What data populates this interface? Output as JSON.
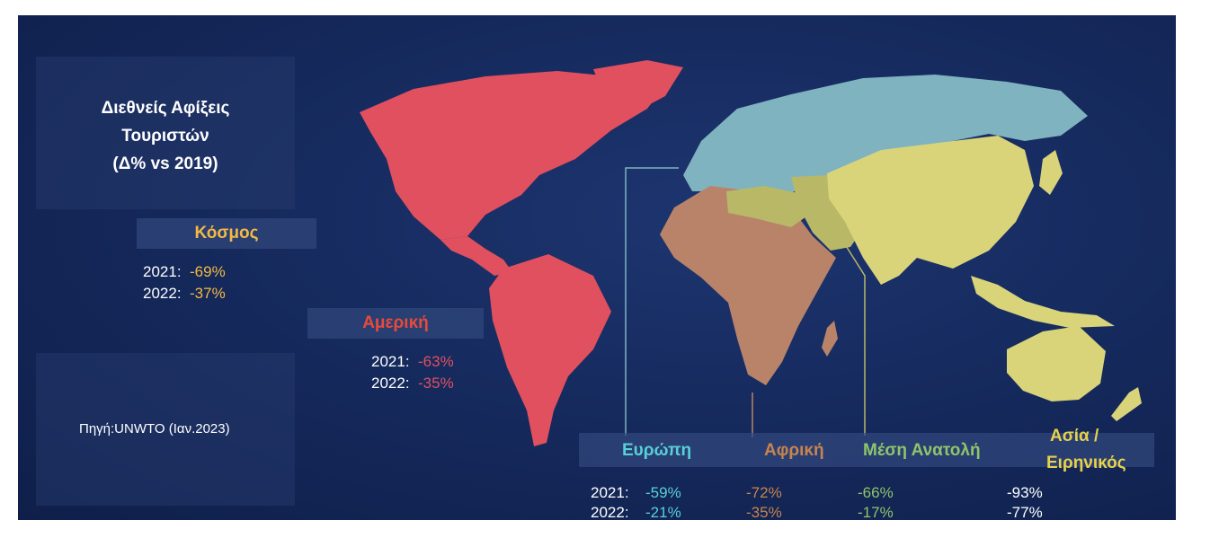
{
  "title_lines": [
    "Διεθνείς Αφίξεις",
    "Τουριστών",
    "(Δ% vs 2019)"
  ],
  "source": "Πηγή:UNWTO (Ιαν.2023)",
  "year_labels": [
    "2021:",
    "2022:"
  ],
  "colors": {
    "world": "#f4b942",
    "americas": "#e0505f",
    "europe": "#7fb3c0",
    "africa": "#b9836a",
    "middle_east": "#b8b867",
    "asia_pacific": "#d9d47a",
    "europe_text": "#58d0d8",
    "africa_text": "#c8844f",
    "middle_east_text": "#8fc46a",
    "asia_text": "#e7d24a"
  },
  "regions": {
    "world": {
      "name": "Κόσμος",
      "v2021": "-69%",
      "v2022": "-37%"
    },
    "americas": {
      "name": "Αμερική",
      "v2021": "-63%",
      "v2022": "-35%"
    },
    "europe": {
      "name": "Ευρώπη",
      "v2021": "-59%",
      "v2022": "-21%"
    },
    "africa": {
      "name": "Αφρική",
      "v2021": "-72%",
      "v2022": "-35%"
    },
    "middle_east": {
      "name": "Μέση Ανατολή",
      "v2021": "-66%",
      "v2022": "-17%"
    },
    "asia_pacific": {
      "name_line1": "Ασία /",
      "name_line2": "Ειρηνικός",
      "v2021": "-93%",
      "v2022": "-77%"
    }
  }
}
